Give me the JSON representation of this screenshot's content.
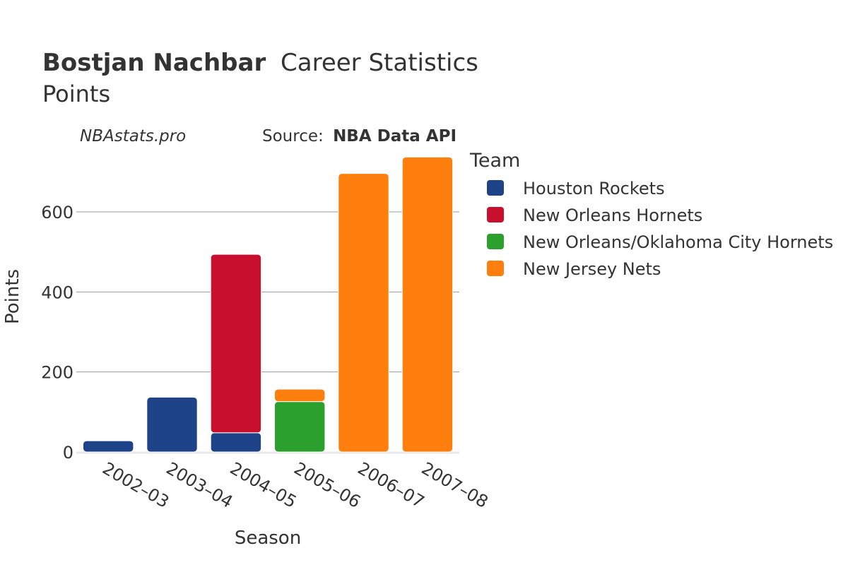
{
  "header": {
    "title_bold": "Bostjan Nachbar",
    "title_rest": "Career Statistics",
    "subtitle": "Points",
    "site": "NBAstats.pro",
    "source_label": "Source:",
    "source_name": "NBA Data API"
  },
  "colors": {
    "Houston Rockets": "#1f4388",
    "New Orleans Hornets": "#c8102e",
    "New Orleans/Oklahoma City Hornets": "#2ca02c",
    "New Jersey Nets": "#ff7f0e"
  },
  "chart_data": {
    "type": "bar",
    "stacked": true,
    "title": "Bostjan Nachbar Career Statistics",
    "subtitle": "Points",
    "xlabel": "Season",
    "ylabel": "Points",
    "ylim": [
      0,
      750
    ],
    "yticks": [
      0,
      200,
      400,
      600
    ],
    "categories": [
      "2002–03",
      "2003–04",
      "2004–05",
      "2005–06",
      "2006–07",
      "2007–08"
    ],
    "legend_title": "Team",
    "legend_position": "right",
    "grid": true,
    "series": [
      {
        "name": "Houston Rockets",
        "values": [
          28,
          137,
          48,
          0,
          0,
          0
        ]
      },
      {
        "name": "New Orleans Hornets",
        "values": [
          0,
          0,
          446,
          0,
          0,
          0
        ]
      },
      {
        "name": "New Orleans/Oklahoma City Hornets",
        "values": [
          0,
          0,
          0,
          126,
          0,
          0
        ]
      },
      {
        "name": "New Jersey Nets",
        "values": [
          0,
          0,
          0,
          31,
          696,
          737
        ]
      }
    ]
  }
}
